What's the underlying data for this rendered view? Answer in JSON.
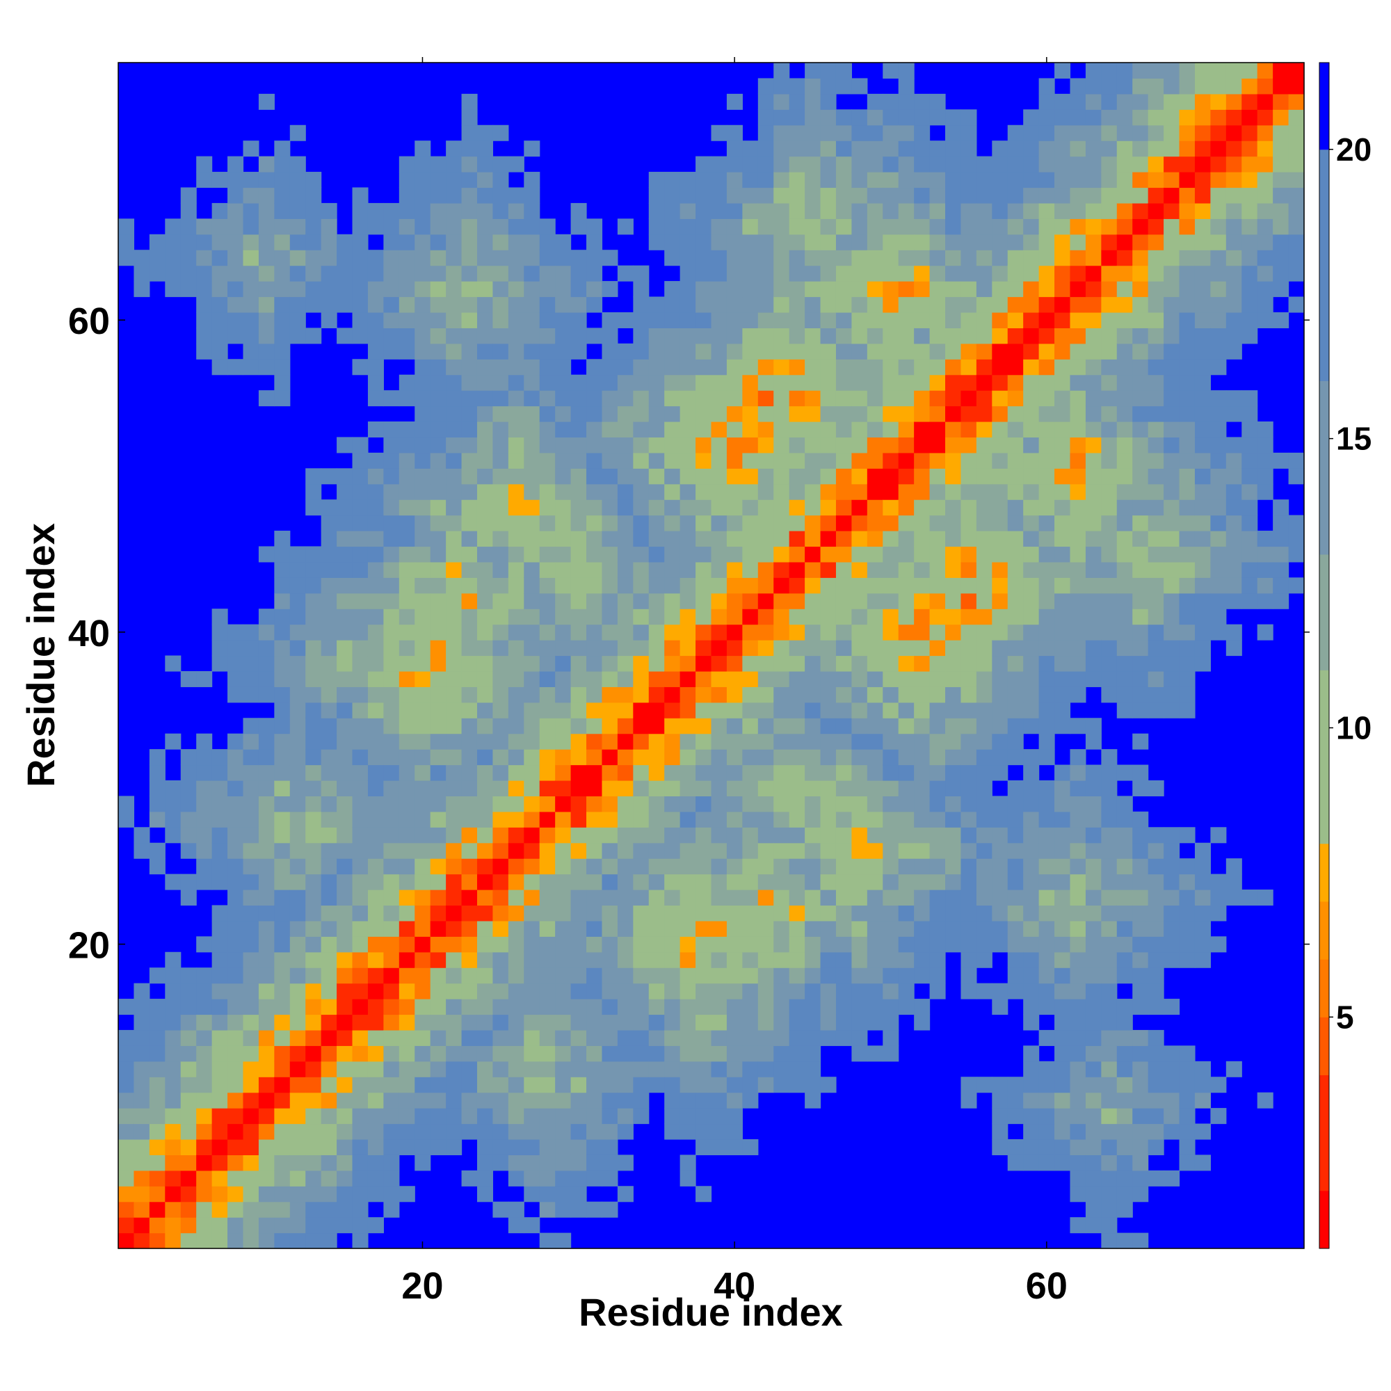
{
  "chart_data": {
    "type": "heatmap",
    "title": "",
    "xlabel": "Residue index",
    "ylabel": "Residue index",
    "x_range": [
      1,
      76
    ],
    "y_range": [
      1,
      76
    ],
    "n_residues": 76,
    "x_ticks": [
      20,
      40,
      60
    ],
    "x_tick_labels": [
      "20",
      "40",
      "60"
    ],
    "y_ticks": [
      20,
      40,
      60
    ],
    "y_tick_labels": [
      "20",
      "40",
      "60"
    ],
    "colorbar": {
      "range": [
        1,
        21.5
      ],
      "ticks": [
        5,
        10,
        15,
        20
      ],
      "tick_labels": [
        "5",
        "10",
        "15",
        "20"
      ],
      "colors": [
        {
          "max": 2,
          "color": "#ff0000"
        },
        {
          "max": 4,
          "color": "#ff2a00"
        },
        {
          "max": 5,
          "color": "#ff5a00"
        },
        {
          "max": 6,
          "color": "#ff7a00"
        },
        {
          "max": 7,
          "color": "#ff9000"
        },
        {
          "max": 8,
          "color": "#ffaa00"
        },
        {
          "max": 11,
          "color": "#9bbd8a"
        },
        {
          "max": 13,
          "color": "#8aa89c"
        },
        {
          "max": 16,
          "color": "#7596b0"
        },
        {
          "max": 20,
          "color": "#5b87c0"
        },
        {
          "max": 21.5,
          "color": "#0000ff"
        }
      ]
    },
    "description_of_values": "Pairwise residue distance map (symmetric); values increase with |i-j|; values above 20 shown in blue",
    "cutoff_value": 20,
    "grid": false,
    "legend": "colorbar-right",
    "colors": {
      "background": "#0000ff",
      "diagonal": "#ff0000",
      "frame": "#000000"
    }
  }
}
